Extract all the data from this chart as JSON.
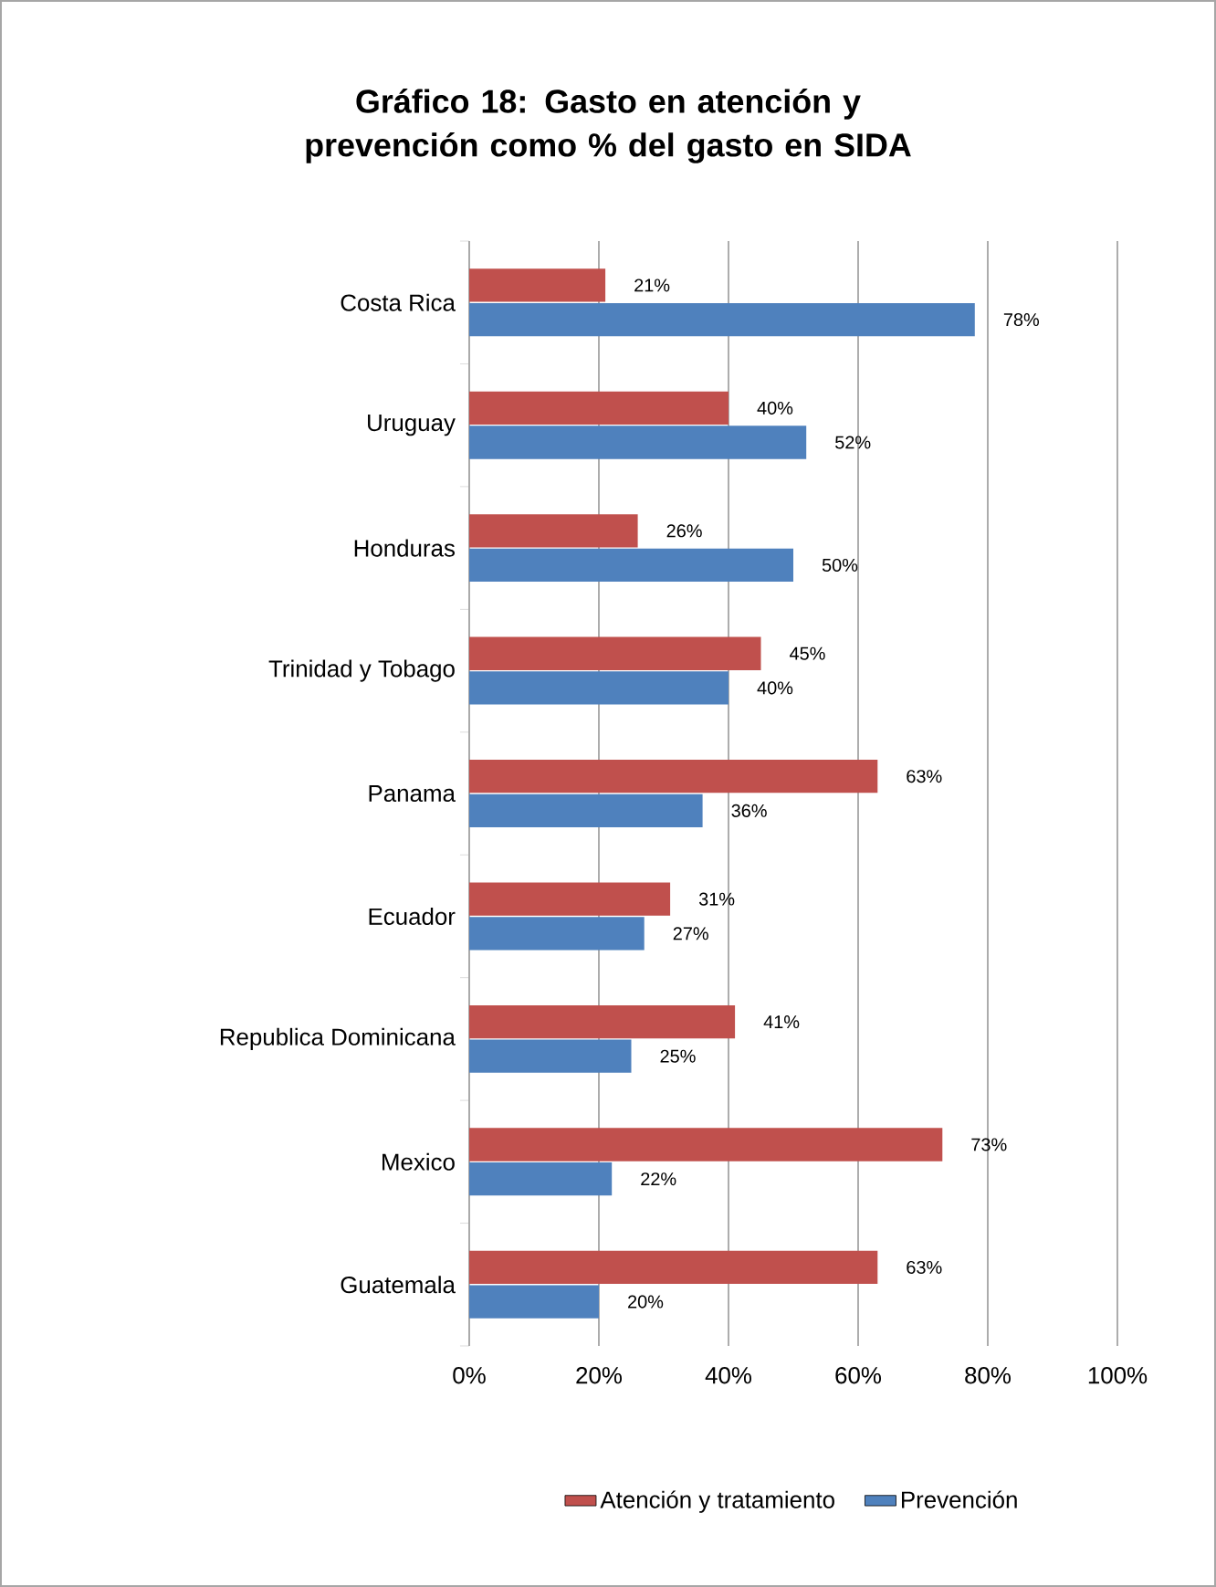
{
  "chart_data": {
    "type": "bar",
    "orientation": "horizontal",
    "title": "Gráfico 18: Gasto en atención y prevención como % del gasto en SIDA",
    "categories": [
      "Costa Rica",
      "Uruguay",
      "Honduras",
      "Trinidad y Tobago",
      "Panama",
      "Ecuador",
      "Republica Dominicana",
      "Mexico",
      "Guatemala"
    ],
    "series": [
      {
        "name": "Atención y tratamiento",
        "color": "#c0504d",
        "values": [
          21,
          40,
          26,
          45,
          63,
          31,
          41,
          73,
          63
        ],
        "value_labels": [
          "21%",
          "40%",
          "26%",
          "45%",
          "63%",
          "31%",
          "41%",
          "73%",
          "63%"
        ]
      },
      {
        "name": "Prevención",
        "color": "#4f81bd",
        "values": [
          78,
          52,
          50,
          40,
          36,
          27,
          25,
          22,
          20
        ],
        "value_labels": [
          "78%",
          "52%",
          "50%",
          "40%",
          "36%",
          "27%",
          "25%",
          "22%",
          "20%"
        ]
      }
    ],
    "xlim": [
      0,
      100
    ],
    "xticks": [
      {
        "value": 0,
        "label": "0%"
      },
      {
        "value": 20,
        "label": "20%"
      },
      {
        "value": 40,
        "label": "40%"
      },
      {
        "value": 60,
        "label": "60%"
      },
      {
        "value": 80,
        "label": "80%"
      },
      {
        "value": 100,
        "label": "100%"
      }
    ],
    "grid": "x",
    "legend": "bottom"
  }
}
